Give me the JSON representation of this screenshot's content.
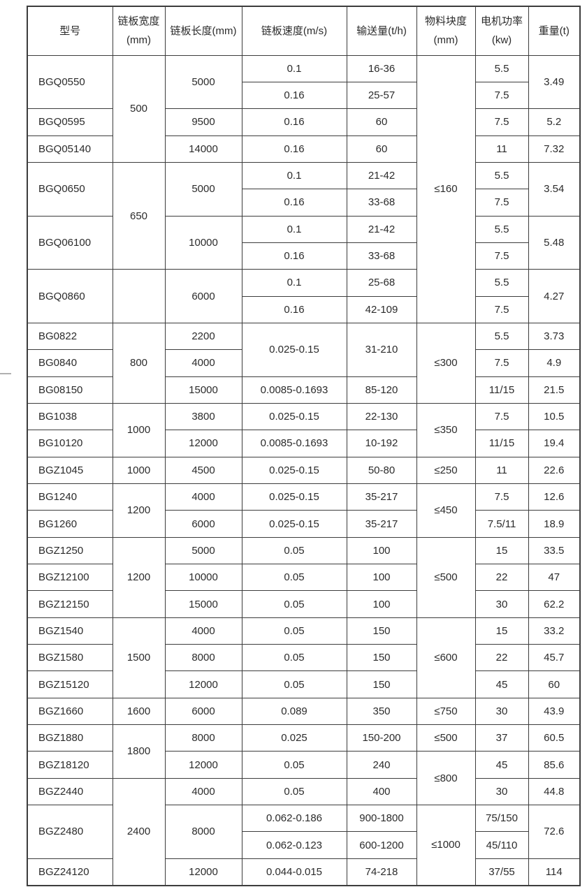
{
  "page": {
    "background": "#ffffff"
  },
  "table": {
    "border_color": "#3c3c3c",
    "text_color": "#2b2b2b",
    "columns": [
      {
        "label": "型号"
      },
      {
        "label": "链板宽度\n(mm)"
      },
      {
        "label": "链板长度(mm)"
      },
      {
        "label": "链板速度(m/s)"
      },
      {
        "label": "输送量(t/h)"
      },
      {
        "label": "物料块度\n(mm)"
      },
      {
        "label": "电机功率\n(kw)"
      },
      {
        "label": "重量(t)"
      }
    ],
    "rows": [
      [
        {
          "t": "BGQ0550",
          "rs": 2
        },
        {
          "t": "500",
          "rs": 4
        },
        {
          "t": "5000",
          "rs": 2
        },
        {
          "t": "0.1"
        },
        {
          "t": "16-36"
        },
        {
          "t": "≤160",
          "rs": 10
        },
        {
          "t": "5.5"
        },
        {
          "t": "3.49",
          "rs": 2
        }
      ],
      [
        {
          "t": "0.16"
        },
        {
          "t": "25-57"
        },
        {
          "t": "7.5"
        }
      ],
      [
        {
          "t": "BGQ0595"
        },
        {
          "t": "9500"
        },
        {
          "t": "0.16"
        },
        {
          "t": "60"
        },
        {
          "t": "7.5"
        },
        {
          "t": "5.2"
        }
      ],
      [
        {
          "t": "BGQ05140"
        },
        {
          "t": "14000"
        },
        {
          "t": "0.16"
        },
        {
          "t": "60"
        },
        {
          "t": "11"
        },
        {
          "t": "7.32"
        }
      ],
      [
        {
          "t": "BGQ0650",
          "rs": 2
        },
        {
          "t": "650",
          "rs": 4
        },
        {
          "t": "5000",
          "rs": 2
        },
        {
          "t": "0.1"
        },
        {
          "t": "21-42"
        },
        {
          "t": "5.5"
        },
        {
          "t": "3.54",
          "rs": 2
        }
      ],
      [
        {
          "t": "0.16"
        },
        {
          "t": "33-68"
        },
        {
          "t": "7.5"
        }
      ],
      [
        {
          "t": "BGQ06100",
          "rs": 2
        },
        {
          "t": "10000",
          "rs": 2
        },
        {
          "t": "0.1"
        },
        {
          "t": "21-42"
        },
        {
          "t": "5.5"
        },
        {
          "t": "5.48",
          "rs": 2
        }
      ],
      [
        {
          "t": "0.16"
        },
        {
          "t": "33-68"
        },
        {
          "t": "7.5"
        }
      ],
      [
        {
          "t": "BGQ0860",
          "rs": 2
        },
        {
          "t": "",
          "rs": 2
        },
        {
          "t": "6000",
          "rs": 2
        },
        {
          "t": "0.1"
        },
        {
          "t": "25-68"
        },
        {
          "t": "5.5"
        },
        {
          "t": "4.27",
          "rs": 2
        }
      ],
      [
        {
          "t": "0.16"
        },
        {
          "t": "42-109"
        },
        {
          "t": "7.5"
        }
      ],
      [
        {
          "t": "BG0822"
        },
        {
          "t": "800",
          "rs": 3
        },
        {
          "t": "2200"
        },
        {
          "t": "0.025-0.15",
          "rs": 2
        },
        {
          "t": "31-210",
          "rs": 2
        },
        {
          "t": "≤300",
          "rs": 3
        },
        {
          "t": "5.5"
        },
        {
          "t": "3.73"
        }
      ],
      [
        {
          "t": "BG0840"
        },
        {
          "t": "4000"
        },
        {
          "t": "7.5"
        },
        {
          "t": "4.9"
        }
      ],
      [
        {
          "t": "BG08150"
        },
        {
          "t": "15000"
        },
        {
          "t": "0.0085-0.1693"
        },
        {
          "t": "85-120"
        },
        {
          "t": "11/15"
        },
        {
          "t": "21.5"
        }
      ],
      [
        {
          "t": "BG1038"
        },
        {
          "t": "1000",
          "rs": 2
        },
        {
          "t": "3800"
        },
        {
          "t": "0.025-0.15"
        },
        {
          "t": "22-130"
        },
        {
          "t": "≤350",
          "rs": 2
        },
        {
          "t": "7.5"
        },
        {
          "t": "10.5"
        }
      ],
      [
        {
          "t": "BG10120"
        },
        {
          "t": "12000"
        },
        {
          "t": "0.0085-0.1693"
        },
        {
          "t": "10-192"
        },
        {
          "t": "11/15"
        },
        {
          "t": "19.4"
        }
      ],
      [
        {
          "t": "BGZ1045"
        },
        {
          "t": "1000"
        },
        {
          "t": "4500"
        },
        {
          "t": "0.025-0.15"
        },
        {
          "t": "50-80"
        },
        {
          "t": "≤250"
        },
        {
          "t": "11"
        },
        {
          "t": "22.6"
        }
      ],
      [
        {
          "t": "BG1240"
        },
        {
          "t": "1200",
          "rs": 2
        },
        {
          "t": "4000"
        },
        {
          "t": "0.025-0.15"
        },
        {
          "t": "35-217"
        },
        {
          "t": "≤450",
          "rs": 2
        },
        {
          "t": "7.5"
        },
        {
          "t": "12.6"
        }
      ],
      [
        {
          "t": "BG1260"
        },
        {
          "t": "6000"
        },
        {
          "t": "0.025-0.15"
        },
        {
          "t": "35-217"
        },
        {
          "t": "7.5/11"
        },
        {
          "t": "18.9"
        }
      ],
      [
        {
          "t": "BGZ1250"
        },
        {
          "t": "1200",
          "rs": 3
        },
        {
          "t": "5000"
        },
        {
          "t": "0.05"
        },
        {
          "t": "100"
        },
        {
          "t": "≤500",
          "rs": 3
        },
        {
          "t": "15"
        },
        {
          "t": "33.5"
        }
      ],
      [
        {
          "t": "BGZ12100"
        },
        {
          "t": "10000"
        },
        {
          "t": "0.05"
        },
        {
          "t": "100"
        },
        {
          "t": "22"
        },
        {
          "t": "47"
        }
      ],
      [
        {
          "t": "BGZ12150"
        },
        {
          "t": "15000"
        },
        {
          "t": "0.05"
        },
        {
          "t": "100"
        },
        {
          "t": "30"
        },
        {
          "t": "62.2"
        }
      ],
      [
        {
          "t": "BGZ1540"
        },
        {
          "t": "1500",
          "rs": 3
        },
        {
          "t": "4000"
        },
        {
          "t": "0.05"
        },
        {
          "t": "150"
        },
        {
          "t": "≤600",
          "rs": 3
        },
        {
          "t": "15"
        },
        {
          "t": "33.2"
        }
      ],
      [
        {
          "t": "BGZ1580"
        },
        {
          "t": "8000"
        },
        {
          "t": "0.05"
        },
        {
          "t": "150"
        },
        {
          "t": "22"
        },
        {
          "t": "45.7"
        }
      ],
      [
        {
          "t": "BGZ15120"
        },
        {
          "t": "12000"
        },
        {
          "t": "0.05"
        },
        {
          "t": "150"
        },
        {
          "t": "45"
        },
        {
          "t": "60"
        }
      ],
      [
        {
          "t": "BGZ1660"
        },
        {
          "t": "1600"
        },
        {
          "t": "6000"
        },
        {
          "t": "0.089"
        },
        {
          "t": "350"
        },
        {
          "t": "≤750"
        },
        {
          "t": "30"
        },
        {
          "t": "43.9"
        }
      ],
      [
        {
          "t": "BGZ1880"
        },
        {
          "t": "1800",
          "rs": 2
        },
        {
          "t": "8000"
        },
        {
          "t": "0.025"
        },
        {
          "t": "150-200"
        },
        {
          "t": "≤500"
        },
        {
          "t": "37"
        },
        {
          "t": "60.5"
        }
      ],
      [
        {
          "t": "BGZ18120"
        },
        {
          "t": "12000"
        },
        {
          "t": "0.05"
        },
        {
          "t": "240"
        },
        {
          "t": "≤800",
          "rs": 2
        },
        {
          "t": "45"
        },
        {
          "t": "85.6"
        }
      ],
      [
        {
          "t": "BGZ2440"
        },
        {
          "t": "2400",
          "rs": 4
        },
        {
          "t": "4000"
        },
        {
          "t": "0.05"
        },
        {
          "t": "400"
        },
        {
          "t": "30"
        },
        {
          "t": "44.8"
        }
      ],
      [
        {
          "t": "BGZ2480",
          "rs": 2
        },
        {
          "t": "8000",
          "rs": 2
        },
        {
          "t": "0.062-0.186"
        },
        {
          "t": "900-1800"
        },
        {
          "t": "≤1000",
          "rs": 3
        },
        {
          "t": "75/150"
        },
        {
          "t": "72.6",
          "rs": 2
        }
      ],
      [
        {
          "t": "0.062-0.123"
        },
        {
          "t": "600-1200"
        },
        {
          "t": "45/110"
        }
      ],
      [
        {
          "t": "BGZ24120"
        },
        {
          "t": "12000"
        },
        {
          "t": "0.044-0.015"
        },
        {
          "t": "74-218"
        },
        {
          "t": "37/55"
        },
        {
          "t": "114"
        }
      ]
    ]
  },
  "chart_data": {
    "type": "table",
    "columns": [
      "型号",
      "链板宽度(mm)",
      "链板长度(mm)",
      "链板速度(m/s)",
      "输送量(t/h)",
      "物料块度(mm)",
      "电机功率(kw)",
      "重量(t)"
    ],
    "records": [
      [
        "BGQ0550",
        "500",
        "5000",
        "0.1",
        "16-36",
        "≤160",
        "5.5",
        "3.49"
      ],
      [
        "BGQ0550",
        "500",
        "5000",
        "0.16",
        "25-57",
        "≤160",
        "7.5",
        "3.49"
      ],
      [
        "BGQ0595",
        "500",
        "9500",
        "0.16",
        "60",
        "≤160",
        "7.5",
        "5.2"
      ],
      [
        "BGQ05140",
        "500",
        "14000",
        "0.16",
        "60",
        "≤160",
        "11",
        "7.32"
      ],
      [
        "BGQ0650",
        "650",
        "5000",
        "0.1",
        "21-42",
        "≤160",
        "5.5",
        "3.54"
      ],
      [
        "BGQ0650",
        "650",
        "5000",
        "0.16",
        "33-68",
        "≤160",
        "7.5",
        "3.54"
      ],
      [
        "BGQ06100",
        "650",
        "10000",
        "0.1",
        "21-42",
        "≤160",
        "5.5",
        "5.48"
      ],
      [
        "BGQ06100",
        "650",
        "10000",
        "0.16",
        "33-68",
        "≤160",
        "7.5",
        "5.48"
      ],
      [
        "BGQ0860",
        "",
        "6000",
        "0.1",
        "25-68",
        "≤160",
        "5.5",
        "4.27"
      ],
      [
        "BGQ0860",
        "",
        "6000",
        "0.16",
        "42-109",
        "≤160",
        "7.5",
        "4.27"
      ],
      [
        "BG0822",
        "800",
        "2200",
        "0.025-0.15",
        "31-210",
        "≤300",
        "5.5",
        "3.73"
      ],
      [
        "BG0840",
        "800",
        "4000",
        "0.025-0.15",
        "31-210",
        "≤300",
        "7.5",
        "4.9"
      ],
      [
        "BG08150",
        "800",
        "15000",
        "0.0085-0.1693",
        "85-120",
        "≤300",
        "11/15",
        "21.5"
      ],
      [
        "BG1038",
        "1000",
        "3800",
        "0.025-0.15",
        "22-130",
        "≤350",
        "7.5",
        "10.5"
      ],
      [
        "BG10120",
        "1000",
        "12000",
        "0.0085-0.1693",
        "10-192",
        "≤350",
        "11/15",
        "19.4"
      ],
      [
        "BGZ1045",
        "1000",
        "4500",
        "0.025-0.15",
        "50-80",
        "≤250",
        "11",
        "22.6"
      ],
      [
        "BG1240",
        "1200",
        "4000",
        "0.025-0.15",
        "35-217",
        "≤450",
        "7.5",
        "12.6"
      ],
      [
        "BG1260",
        "1200",
        "6000",
        "0.025-0.15",
        "35-217",
        "≤450",
        "7.5/11",
        "18.9"
      ],
      [
        "BGZ1250",
        "1200",
        "5000",
        "0.05",
        "100",
        "≤500",
        "15",
        "33.5"
      ],
      [
        "BGZ12100",
        "1200",
        "10000",
        "0.05",
        "100",
        "≤500",
        "22",
        "47"
      ],
      [
        "BGZ12150",
        "1200",
        "15000",
        "0.05",
        "100",
        "≤500",
        "30",
        "62.2"
      ],
      [
        "BGZ1540",
        "1500",
        "4000",
        "0.05",
        "150",
        "≤600",
        "15",
        "33.2"
      ],
      [
        "BGZ1580",
        "1500",
        "8000",
        "0.05",
        "150",
        "≤600",
        "22",
        "45.7"
      ],
      [
        "BGZ15120",
        "1500",
        "12000",
        "0.05",
        "150",
        "≤600",
        "45",
        "60"
      ],
      [
        "BGZ1660",
        "1600",
        "6000",
        "0.089",
        "350",
        "≤750",
        "30",
        "43.9"
      ],
      [
        "BGZ1880",
        "1800",
        "8000",
        "0.025",
        "150-200",
        "≤500",
        "37",
        "60.5"
      ],
      [
        "BGZ18120",
        "1800",
        "12000",
        "0.05",
        "240",
        "≤800",
        "45",
        "85.6"
      ],
      [
        "BGZ2440",
        "2400",
        "4000",
        "0.05",
        "400",
        "≤800",
        "30",
        "44.8"
      ],
      [
        "BGZ2480",
        "2400",
        "8000",
        "0.062-0.186",
        "900-1800",
        "≤1000",
        "75/150",
        "72.6"
      ],
      [
        "BGZ2480",
        "2400",
        "8000",
        "0.062-0.123",
        "600-1200",
        "≤1000",
        "45/110",
        "72.6"
      ],
      [
        "BGZ24120",
        "2400",
        "12000",
        "0.044-0.015",
        "74-218",
        "≤1000",
        "37/55",
        "114"
      ]
    ]
  }
}
